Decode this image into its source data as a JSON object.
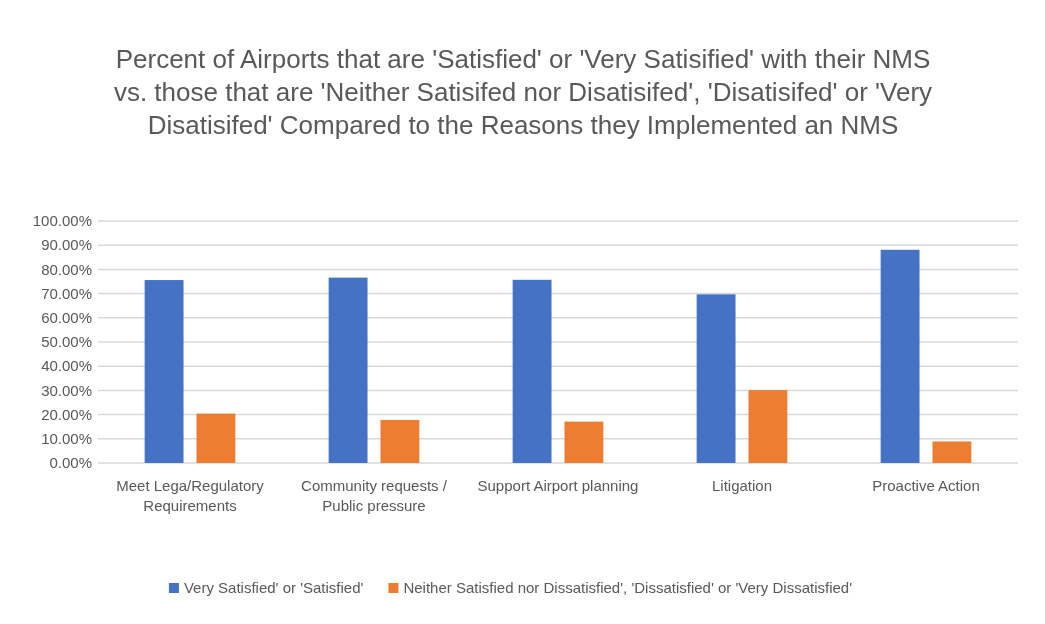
{
  "chart_data": {
    "type": "bar",
    "title": "Percent of Airports that are 'Satisfied' or 'Very Satisified' with their NMS vs. those that are 'Neither Satisifed nor Disatisifed', 'Disatisifed' or 'Very Disatisifed' Compared to the Reasons they Implemented an NMS",
    "categories": [
      "Meet Lega/Regulatory Requirements",
      "Community requests / Public pressure",
      "Support Airport planning",
      "Litigation",
      "Proactive Action"
    ],
    "series": [
      {
        "name": "Very Satisfied' or 'Satisfied'",
        "color": "#4472c4",
        "values": [
          75.6,
          76.6,
          75.7,
          69.7,
          88.1
        ]
      },
      {
        "name": "Neither Satisfied nor Dissatisfied', 'Dissatisfied' or 'Very Dissatisfied'",
        "color": "#ed7d31",
        "values": [
          20.4,
          17.8,
          17.1,
          30.1,
          8.9
        ]
      }
    ],
    "ylim": [
      0,
      100
    ],
    "yticks": [
      {
        "value": 0,
        "label": "0.00%"
      },
      {
        "value": 10,
        "label": "10.00%"
      },
      {
        "value": 20,
        "label": "20.00%"
      },
      {
        "value": 30,
        "label": "30.00%"
      },
      {
        "value": 40,
        "label": "40.00%"
      },
      {
        "value": 50,
        "label": "50.00%"
      },
      {
        "value": 60,
        "label": "60.00%"
      },
      {
        "value": 70,
        "label": "70.00%"
      },
      {
        "value": 80,
        "label": "80.00%"
      },
      {
        "value": 90,
        "label": "90.00%"
      },
      {
        "value": 100,
        "label": "100.00%"
      }
    ],
    "grid": "y",
    "legend": "bottom"
  }
}
